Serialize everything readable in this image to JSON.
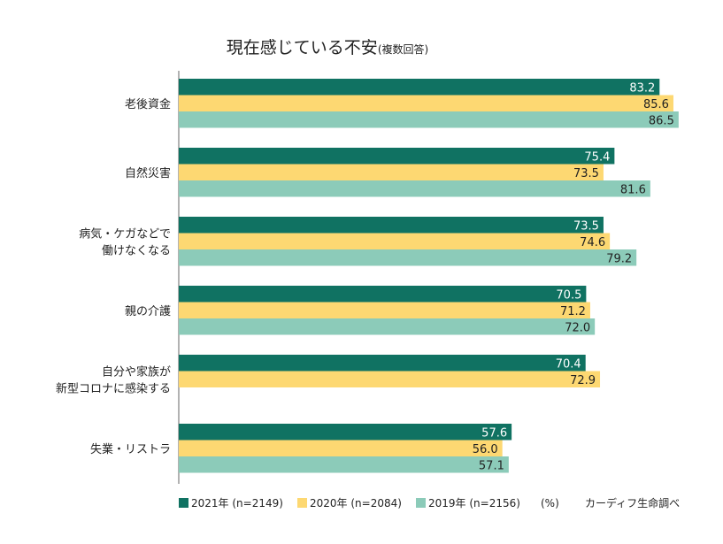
{
  "chart_data": {
    "type": "bar",
    "orientation": "horizontal",
    "title": "現在感じている不安",
    "subtitle": "(複数回答)",
    "unit_label": "(%)",
    "source": "カーディフ生命調べ",
    "categories": [
      [
        "老後資金"
      ],
      [
        "自然災害"
      ],
      [
        "病気・ケガなどで",
        "働けなくなる"
      ],
      [
        "親の介護"
      ],
      [
        "自分や家族が",
        "新型コロナに感染する"
      ],
      [
        "失業・リストラ"
      ]
    ],
    "series": [
      {
        "name": "2021年 (n=2149)",
        "color": "#107262",
        "label_color": "#ffffff",
        "values": [
          83.2,
          75.4,
          73.5,
          70.5,
          70.4,
          57.6
        ]
      },
      {
        "name": "2020年 (n=2084)",
        "color": "#fdd872",
        "label_color": "#222222",
        "values": [
          85.6,
          73.5,
          74.6,
          71.2,
          72.9,
          56.0
        ]
      },
      {
        "name": "2019年 (n=2156)",
        "color": "#8ccbb9",
        "label_color": "#222222",
        "values": [
          86.5,
          81.6,
          79.2,
          72.0,
          null,
          57.1
        ]
      }
    ],
    "xlim": [
      0,
      100
    ],
    "grid": false,
    "legend": "bottom"
  }
}
